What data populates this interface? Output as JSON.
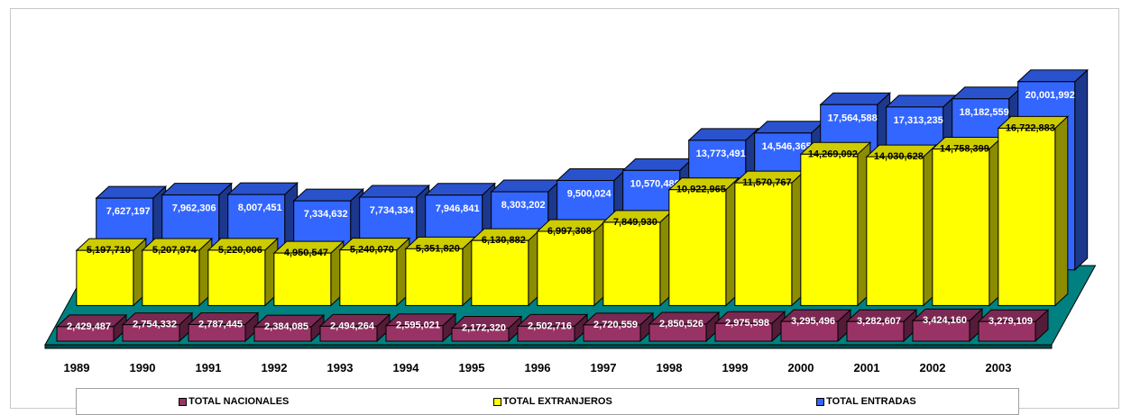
{
  "chart_data": {
    "type": "bar",
    "style": "3d-clustered-depth",
    "categories": [
      "1989",
      "1990",
      "1991",
      "1992",
      "1993",
      "1994",
      "1995",
      "1996",
      "1997",
      "1998",
      "1999",
      "2000",
      "2001",
      "2002",
      "2003"
    ],
    "series": [
      {
        "name": "TOTAL NACIONALES",
        "color": "#993366",
        "values": [
          2429487,
          2754332,
          2787445,
          2384085,
          2494264,
          2595021,
          2172320,
          2502716,
          2720559,
          2850526,
          2975598,
          3295496,
          3282607,
          3424160,
          3279109
        ],
        "labels": [
          "2,429,487",
          "2,754,332",
          "2,787,445",
          "2,384,085",
          "2,494,264",
          "2,595,021",
          "2,172,320",
          "2,502,716",
          "2,720,559",
          "2,850,526",
          "2,975,598",
          "3,295,496",
          "3,282,607",
          "3,424,160",
          "3,279,109"
        ]
      },
      {
        "name": "TOTAL EXTRANJEROS",
        "color": "#ffff00",
        "values": [
          5197710,
          5207974,
          5220006,
          4950547,
          5240070,
          5351820,
          6130882,
          6997308,
          7849930,
          10922965,
          11570767,
          14269092,
          14030628,
          14758399,
          16722883
        ],
        "labels": [
          "5,197,710",
          "5,207,974",
          "5,220,006",
          "4,950,547",
          "5,240,070",
          "5,351,820",
          "6,130,882",
          "6,997,308",
          "7,849,930",
          "10,922,965",
          "11,570,767",
          "14,269,092",
          "14,030,628",
          "14,758,399",
          "16,722,883"
        ]
      },
      {
        "name": "TOTAL ENTRADAS",
        "color": "#3366ff",
        "values": [
          7627197,
          7962306,
          8007451,
          7334632,
          7734334,
          7946841,
          8303202,
          9500024,
          10570489,
          13773491,
          14546365,
          17564588,
          17313235,
          18182559,
          20001992
        ],
        "labels": [
          "7,627,197",
          "7,962,306",
          "8,007,451",
          "7,334,632",
          "7,734,334",
          "7,946,841",
          "8,303,202",
          "9,500,024",
          "10,570,489",
          "13,773,491",
          "14,546,365",
          "17,564,588",
          "17,313,235",
          "18,182,559",
          "20,001,992"
        ]
      }
    ],
    "floor_color": "#008080",
    "legend_position": "bottom",
    "grid": false
  },
  "legend": {
    "items": [
      "TOTAL NACIONALES",
      "TOTAL EXTRANJEROS",
      "TOTAL ENTRADAS"
    ]
  }
}
